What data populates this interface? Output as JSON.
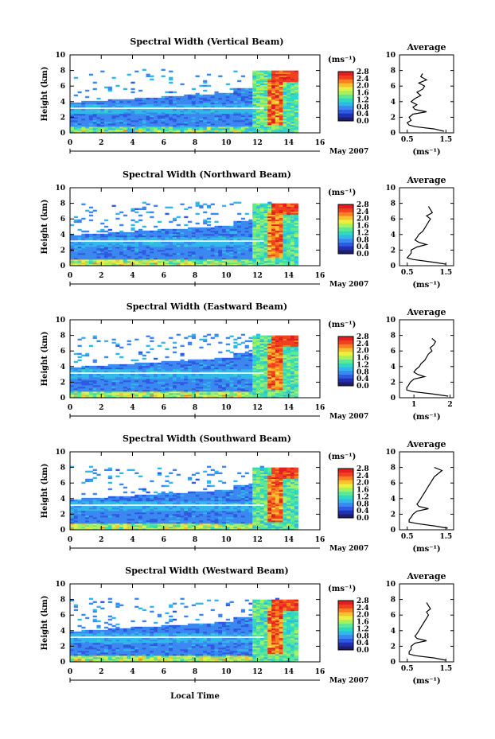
{
  "figure": {
    "x_axis_label": "Local Time",
    "date_label": "May 2007",
    "y_axis_label": "Height (km)",
    "colorbar_unit": "(ms⁻¹)",
    "profile_title": "Average",
    "profile_unit": "(ms⁻¹)",
    "colormap": [
      "#1e1e6e",
      "#2030b0",
      "#3058e0",
      "#3a88f0",
      "#30b8e8",
      "#30d8c0",
      "#60e890",
      "#a8f060",
      "#e8f040",
      "#f8c030",
      "#f88020",
      "#f04020",
      "#e02020"
    ]
  },
  "chart_data": [
    {
      "type": "heatmap",
      "title": "Spectral Width (Vertical Beam)",
      "xlabel": "",
      "ylabel": "Height (km)",
      "x_ticks": [
        "0",
        "2",
        "4",
        "6",
        "8",
        "10",
        "12",
        "14",
        "16"
      ],
      "y_ticks": [
        "0",
        "2",
        "4",
        "6",
        "8",
        "10"
      ],
      "xlim": [
        0,
        16
      ],
      "ylim": [
        0,
        10
      ],
      "colorbar_ticks": [
        "0.0",
        "0.4",
        "0.8",
        "1.2",
        "1.6",
        "2.0",
        "2.4",
        "2.8"
      ],
      "profile": {
        "title": "Average",
        "xlabel": "(ms⁻¹)",
        "x_ticks": [
          "0.5",
          "1.5"
        ],
        "xlim": [
          0.3,
          1.7
        ],
        "y_ticks": [
          "0",
          "2",
          "4",
          "6",
          "8",
          "10"
        ],
        "heights": [
          0.2,
          0.5,
          0.8,
          1.0,
          1.3,
          1.6,
          2.0,
          2.4,
          2.7,
          3.0,
          3.3,
          3.6,
          4.0,
          4.4,
          4.8,
          5.2,
          5.6,
          6.0,
          6.4,
          6.8,
          7.2,
          7.6
        ],
        "values": [
          1.45,
          1.2,
          0.7,
          0.55,
          0.5,
          0.6,
          0.55,
          0.65,
          1.0,
          0.7,
          0.65,
          0.75,
          0.6,
          0.7,
          0.85,
          0.75,
          0.9,
          0.95,
          0.8,
          1.0,
          0.85,
          0.9
        ]
      }
    },
    {
      "type": "heatmap",
      "title": "Spectral Width (Northward Beam)",
      "xlabel": "",
      "ylabel": "Height (km)",
      "x_ticks": [
        "0",
        "2",
        "4",
        "6",
        "8",
        "10",
        "12",
        "14",
        "16"
      ],
      "y_ticks": [
        "0",
        "2",
        "4",
        "6",
        "8",
        "10"
      ],
      "xlim": [
        0,
        16
      ],
      "ylim": [
        0,
        10
      ],
      "colorbar_ticks": [
        "0.0",
        "0.4",
        "0.8",
        "1.2",
        "1.6",
        "2.0",
        "2.4",
        "2.8"
      ],
      "profile": {
        "title": "Average",
        "xlabel": "(ms⁻¹)",
        "x_ticks": [
          "0.5",
          "1.5"
        ],
        "xlim": [
          0.3,
          1.7
        ],
        "y_ticks": [
          "0",
          "2",
          "4",
          "6",
          "8",
          "10"
        ],
        "heights": [
          0.2,
          0.5,
          0.8,
          1.0,
          1.3,
          1.6,
          2.0,
          2.4,
          2.7,
          3.0,
          3.3,
          3.6,
          4.0,
          4.4,
          4.8,
          5.2,
          5.6,
          6.0,
          6.4,
          6.8,
          7.2,
          7.6
        ],
        "values": [
          1.5,
          1.1,
          0.65,
          0.5,
          0.55,
          0.6,
          0.6,
          0.75,
          1.0,
          0.8,
          0.7,
          0.75,
          0.8,
          0.9,
          0.95,
          1.0,
          1.05,
          1.1,
          1.0,
          1.15,
          1.1,
          1.05
        ]
      }
    },
    {
      "type": "heatmap",
      "title": "Spectral Width (Eastward Beam)",
      "xlabel": "",
      "ylabel": "Height (km)",
      "x_ticks": [
        "0",
        "2",
        "4",
        "6",
        "8",
        "10",
        "12",
        "14",
        "16"
      ],
      "y_ticks": [
        "0",
        "2",
        "4",
        "6",
        "8",
        "10"
      ],
      "xlim": [
        0,
        16
      ],
      "ylim": [
        0,
        10
      ],
      "colorbar_ticks": [
        "0.0",
        "0.4",
        "0.8",
        "1.2",
        "1.6",
        "2.0",
        "2.4",
        "2.8"
      ],
      "profile": {
        "title": "Average",
        "xlabel": "(ms⁻¹)",
        "x_ticks": [
          "1",
          "2"
        ],
        "xlim": [
          0.6,
          2.1
        ],
        "y_ticks": [
          "0",
          "2",
          "4",
          "6",
          "8",
          "10"
        ],
        "heights": [
          0.2,
          0.5,
          0.8,
          1.0,
          1.3,
          1.6,
          2.0,
          2.4,
          2.7,
          3.0,
          3.3,
          3.6,
          4.0,
          4.4,
          4.8,
          5.2,
          5.6,
          6.0,
          6.4,
          6.8,
          7.2,
          7.6
        ],
        "values": [
          1.95,
          1.5,
          0.95,
          0.8,
          0.8,
          0.85,
          0.9,
          1.0,
          1.3,
          1.1,
          1.0,
          1.05,
          1.15,
          1.2,
          1.3,
          1.35,
          1.4,
          1.5,
          1.45,
          1.55,
          1.6,
          1.5
        ]
      }
    },
    {
      "type": "heatmap",
      "title": "Spectral Width (Southward Beam)",
      "xlabel": "",
      "ylabel": "Height (km)",
      "x_ticks": [
        "0",
        "2",
        "4",
        "6",
        "8",
        "10",
        "12",
        "14",
        "16"
      ],
      "y_ticks": [
        "0",
        "2",
        "4",
        "6",
        "8",
        "10"
      ],
      "xlim": [
        0,
        16
      ],
      "ylim": [
        0,
        10
      ],
      "colorbar_ticks": [
        "0.0",
        "0.4",
        "0.8",
        "1.2",
        "1.6",
        "2.0",
        "2.4",
        "2.8"
      ],
      "profile": {
        "title": "Average",
        "xlabel": "(ms⁻¹)",
        "x_ticks": [
          "0.5",
          "1.5"
        ],
        "xlim": [
          0.3,
          1.7
        ],
        "y_ticks": [
          "0",
          "2",
          "4",
          "6",
          "8",
          "10"
        ],
        "heights": [
          0.2,
          0.5,
          0.8,
          1.0,
          1.3,
          1.6,
          2.0,
          2.4,
          2.7,
          3.0,
          3.3,
          3.6,
          4.0,
          4.4,
          4.8,
          5.2,
          5.6,
          6.0,
          6.4,
          6.8,
          7.2,
          7.6,
          8.0
        ],
        "values": [
          1.55,
          1.2,
          0.75,
          0.55,
          0.55,
          0.6,
          0.65,
          0.75,
          1.05,
          0.8,
          0.75,
          0.8,
          0.85,
          0.9,
          0.95,
          1.0,
          1.05,
          1.1,
          1.15,
          1.2,
          1.3,
          1.4,
          1.2
        ]
      }
    },
    {
      "type": "heatmap",
      "title": "Spectral Width (Westward Beam)",
      "xlabel": "Local Time",
      "ylabel": "Height (km)",
      "x_ticks": [
        "0",
        "2",
        "4",
        "6",
        "8",
        "10",
        "12",
        "14",
        "16"
      ],
      "y_ticks": [
        "0",
        "2",
        "4",
        "6",
        "8",
        "10"
      ],
      "xlim": [
        0,
        16
      ],
      "ylim": [
        0,
        10
      ],
      "colorbar_ticks": [
        "0.0",
        "0.4",
        "0.8",
        "1.2",
        "1.6",
        "2.0",
        "2.4",
        "2.8"
      ],
      "profile": {
        "title": "Average",
        "xlabel": "(ms⁻¹)",
        "x_ticks": [
          "0.5",
          "1.5"
        ],
        "xlim": [
          0.3,
          1.7
        ],
        "y_ticks": [
          "0",
          "2",
          "4",
          "6",
          "8",
          "10"
        ],
        "heights": [
          0.2,
          0.5,
          0.8,
          1.0,
          1.3,
          1.6,
          2.0,
          2.4,
          2.7,
          3.0,
          3.3,
          3.6,
          4.0,
          4.4,
          4.8,
          5.2,
          5.6,
          6.0,
          6.4,
          6.8,
          7.2,
          7.6
        ],
        "values": [
          1.5,
          1.2,
          0.7,
          0.55,
          0.55,
          0.6,
          0.6,
          0.7,
          1.0,
          0.75,
          0.7,
          0.75,
          0.8,
          0.85,
          0.9,
          0.95,
          1.0,
          1.05,
          1.0,
          1.1,
          1.05,
          1.0
        ]
      }
    }
  ]
}
